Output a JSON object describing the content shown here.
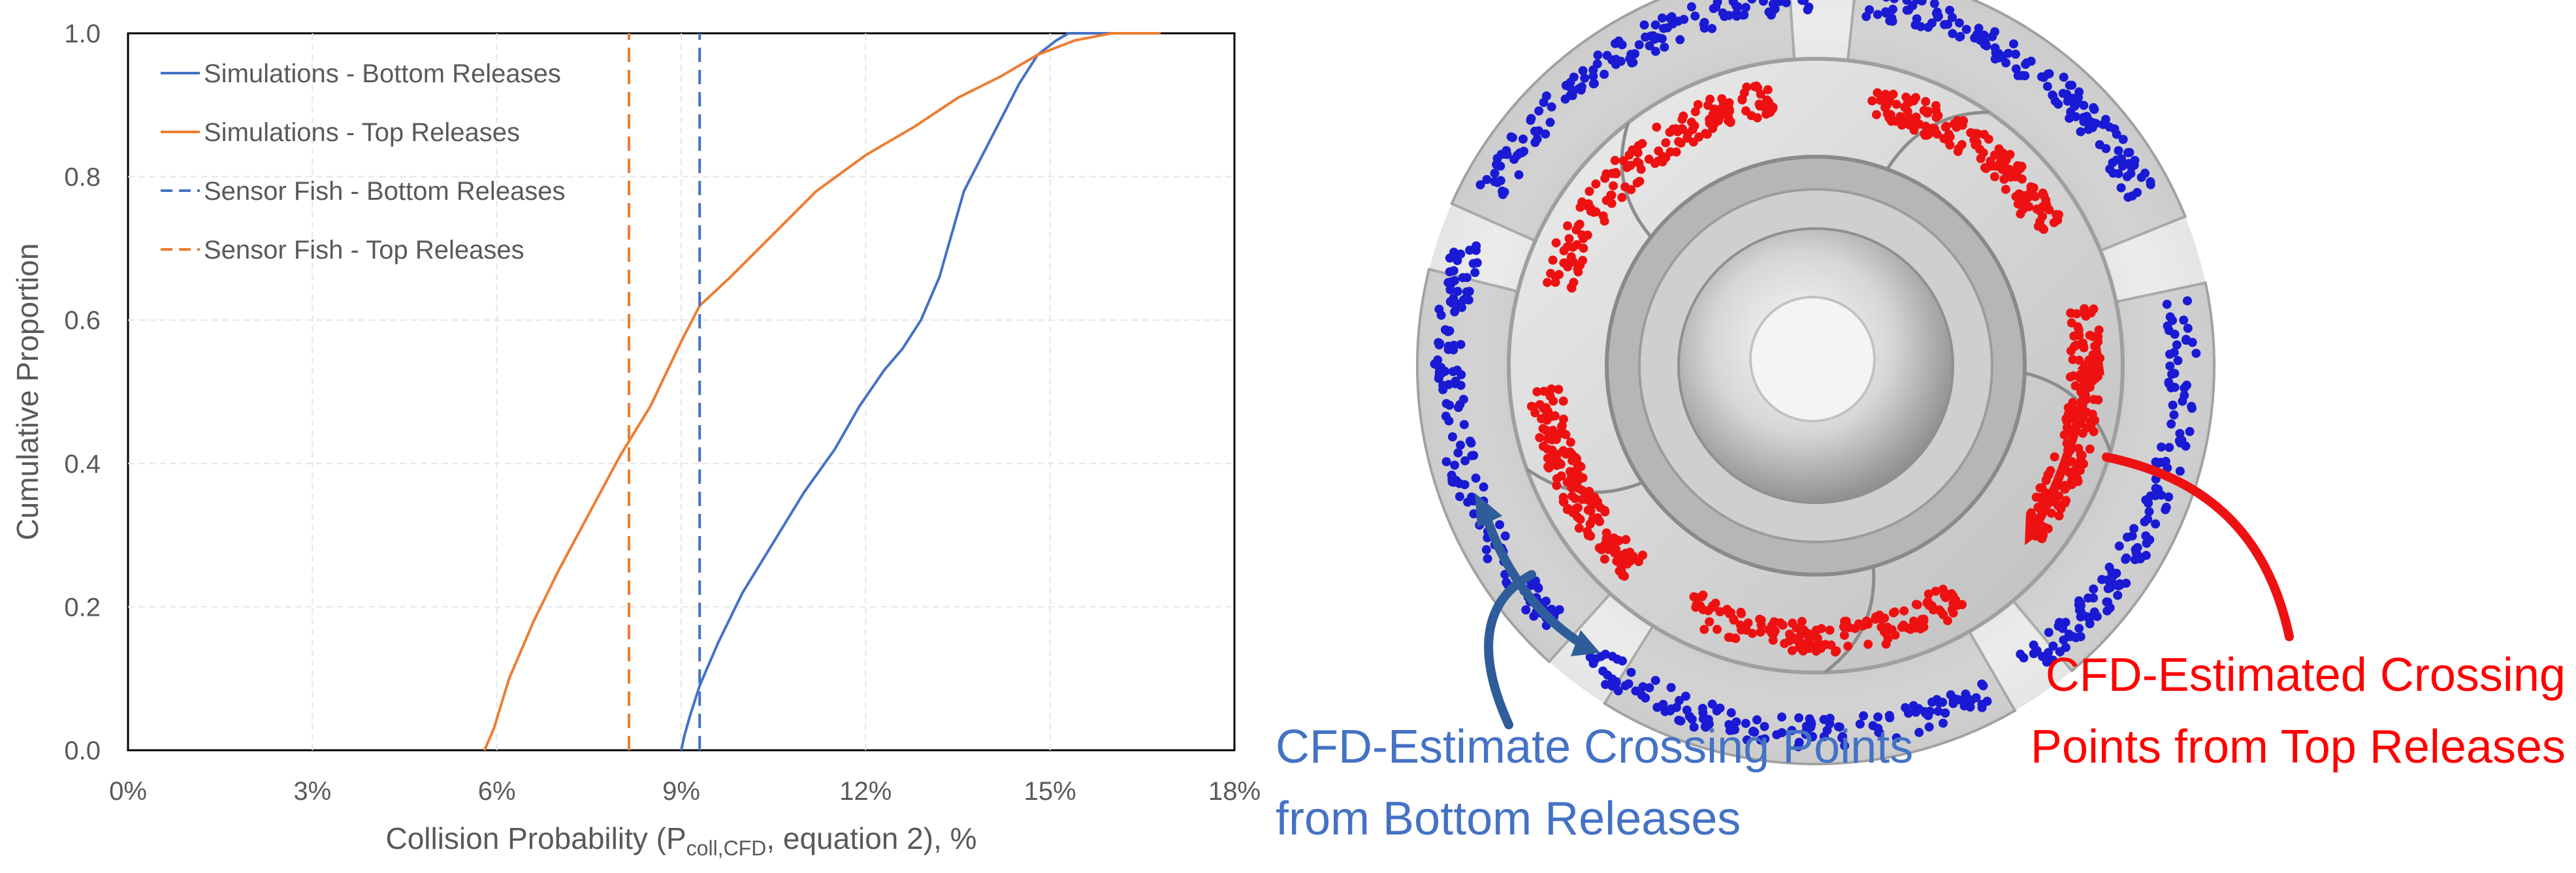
{
  "chart_data": {
    "type": "line",
    "title": "",
    "xlabel": "Collision Probability (P",
    "xlabel_sub": "coll,CFD",
    "xlabel_tail": ", equation 2), %",
    "ylabel": "Cumulative Proportion",
    "xlim": [
      0,
      18
    ],
    "ylim": [
      0,
      1
    ],
    "x_ticks": [
      {
        "value": 0,
        "label": "0%"
      },
      {
        "value": 3,
        "label": "3%"
      },
      {
        "value": 6,
        "label": "6%"
      },
      {
        "value": 9,
        "label": "9%"
      },
      {
        "value": 12,
        "label": "12%"
      },
      {
        "value": 15,
        "label": "15%"
      },
      {
        "value": 18,
        "label": "18%"
      }
    ],
    "y_ticks": [
      {
        "value": 0,
        "label": "0.0"
      },
      {
        "value": 0.2,
        "label": "0.2"
      },
      {
        "value": 0.4,
        "label": "0.4"
      },
      {
        "value": 0.6,
        "label": "0.6"
      },
      {
        "value": 0.8,
        "label": "0.8"
      },
      {
        "value": 1.0,
        "label": "1.0"
      }
    ],
    "series": [
      {
        "name": "Simulations - Bottom Releases",
        "color": "#4472c4",
        "style": "solid",
        "points": [
          [
            9.0,
            0.0
          ],
          [
            9.05,
            0.02
          ],
          [
            9.15,
            0.05
          ],
          [
            9.3,
            0.09
          ],
          [
            9.6,
            0.15
          ],
          [
            10.0,
            0.22
          ],
          [
            10.5,
            0.29
          ],
          [
            11.0,
            0.36
          ],
          [
            11.5,
            0.42
          ],
          [
            11.9,
            0.48
          ],
          [
            12.3,
            0.53
          ],
          [
            12.6,
            0.56
          ],
          [
            12.9,
            0.6
          ],
          [
            13.2,
            0.66
          ],
          [
            13.4,
            0.72
          ],
          [
            13.6,
            0.78
          ],
          [
            13.9,
            0.83
          ],
          [
            14.2,
            0.88
          ],
          [
            14.5,
            0.93
          ],
          [
            14.8,
            0.97
          ],
          [
            15.1,
            0.99
          ],
          [
            15.3,
            1.0
          ],
          [
            16.8,
            1.0
          ]
        ]
      },
      {
        "name": "Simulations - Top Releases",
        "color": "#ed7d31",
        "style": "solid",
        "points": [
          [
            5.8,
            0.0
          ],
          [
            5.95,
            0.03
          ],
          [
            6.2,
            0.1
          ],
          [
            6.6,
            0.18
          ],
          [
            7.0,
            0.25
          ],
          [
            7.5,
            0.33
          ],
          [
            8.0,
            0.41
          ],
          [
            8.5,
            0.48
          ],
          [
            9.0,
            0.57
          ],
          [
            9.3,
            0.62
          ],
          [
            9.8,
            0.66
          ],
          [
            10.5,
            0.72
          ],
          [
            11.2,
            0.78
          ],
          [
            12.0,
            0.83
          ],
          [
            12.8,
            0.87
          ],
          [
            13.5,
            0.91
          ],
          [
            14.2,
            0.94
          ],
          [
            14.8,
            0.97
          ],
          [
            15.4,
            0.99
          ],
          [
            16.0,
            1.0
          ],
          [
            16.8,
            1.0
          ]
        ]
      },
      {
        "name": "Sensor Fish - Bottom Releases",
        "color": "#4472c4",
        "style": "dashed",
        "points": [
          [
            9.3,
            0.0
          ],
          [
            9.3,
            1.0
          ]
        ]
      },
      {
        "name": "Sensor Fish - Top Releases",
        "color": "#ed7d31",
        "style": "dashed",
        "points": [
          [
            8.15,
            0.0
          ],
          [
            8.15,
            1.0
          ]
        ]
      }
    ]
  },
  "annotations": {
    "blue_callout": [
      "CFD-Estimate Crossing Points",
      "from Bottom Releases"
    ],
    "red_callout": [
      "CFD-Estimated Crossing",
      "Points from Top Releases"
    ]
  },
  "colors": {
    "crossing_blue": "#1a1ad4",
    "crossing_red": "#ee1111",
    "arrow_blue": "#2e5d99",
    "arrow_red": "#ee1111"
  }
}
